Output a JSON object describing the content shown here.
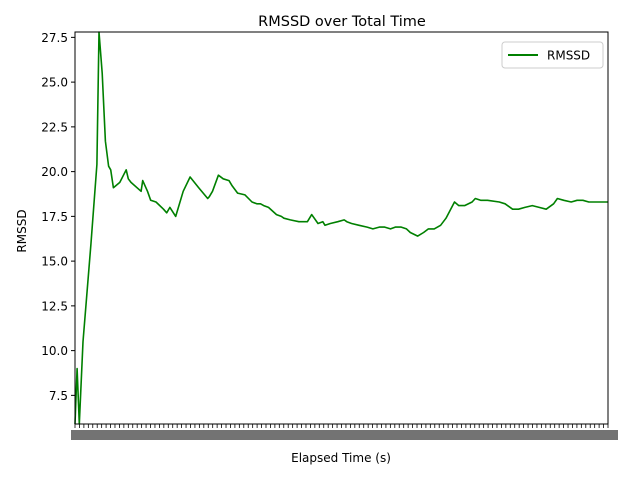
{
  "chart_data": {
    "type": "line",
    "title": "RMSSD over Total Time",
    "xlabel": "Elapsed Time (s)",
    "ylabel": "RMSSD",
    "ylim": [
      5.9,
      27.8
    ],
    "xlim": [
      0,
      100
    ],
    "yticks": [
      "7.5",
      "10.0",
      "12.5",
      "15.0",
      "17.5",
      "20.0",
      "22.5",
      "25.0",
      "27.5"
    ],
    "ytick_values": [
      7.5,
      10.0,
      12.5,
      15.0,
      17.5,
      20.0,
      22.5,
      25.0,
      27.5
    ],
    "xticks_note": "x tick labels are dense and overlapping (illegible)",
    "grid": false,
    "legend": "top-right",
    "series": [
      {
        "name": "RMSSD",
        "color": "#008000",
        "x": [
          0.0,
          0.4,
          0.8,
          1.5,
          3.0,
          4.1,
          4.5,
          5.1,
          5.7,
          6.3,
          6.7,
          7.2,
          8.4,
          9.6,
          10.0,
          10.5,
          12.4,
          12.7,
          13.6,
          14.2,
          15.2,
          16.6,
          17.2,
          17.8,
          18.9,
          20.3,
          21.6,
          23.2,
          24.9,
          25.2,
          25.8,
          26.9,
          27.8,
          28.9,
          29.5,
          30.5,
          31.9,
          33.2,
          34.1,
          34.8,
          35.4,
          36.3,
          37.8,
          38.7,
          39.2,
          40.4,
          42.0,
          43.6,
          44.4,
          45.6,
          46.5,
          46.9,
          47.9,
          49.3,
          50.5,
          51.0,
          51.9,
          53.3,
          54.8,
          55.9,
          57.1,
          58.1,
          59.2,
          60.1,
          61.2,
          62.2,
          62.9,
          64.3,
          65.4,
          66.3,
          67.4,
          68.6,
          69.6,
          71.2,
          72.0,
          73.1,
          74.5,
          75.1,
          76.1,
          77.4,
          79.6,
          80.7,
          82.1,
          83.2,
          84.4,
          85.8,
          87.1,
          88.4,
          89.8,
          90.5,
          91.7,
          93.1,
          94.2,
          95.3,
          96.4,
          97.9,
          98.8,
          100.0
        ],
        "y": [
          5.9,
          9.0,
          5.9,
          10.5,
          16.0,
          20.4,
          27.8,
          25.5,
          21.7,
          20.3,
          20.1,
          19.1,
          19.4,
          20.1,
          19.6,
          19.4,
          18.9,
          19.5,
          18.9,
          18.4,
          18.3,
          17.9,
          17.7,
          18.0,
          17.5,
          18.9,
          19.7,
          19.1,
          18.5,
          18.6,
          18.9,
          19.8,
          19.6,
          19.5,
          19.2,
          18.8,
          18.7,
          18.3,
          18.2,
          18.2,
          18.1,
          18.0,
          17.6,
          17.5,
          17.4,
          17.3,
          17.2,
          17.2,
          17.6,
          17.1,
          17.2,
          17.0,
          17.1,
          17.2,
          17.3,
          17.2,
          17.1,
          17.0,
          16.9,
          16.8,
          16.9,
          16.9,
          16.8,
          16.9,
          16.9,
          16.8,
          16.6,
          16.4,
          16.6,
          16.8,
          16.8,
          17.0,
          17.4,
          18.3,
          18.1,
          18.1,
          18.3,
          18.5,
          18.4,
          18.4,
          18.3,
          18.2,
          17.9,
          17.9,
          18.0,
          18.1,
          18.0,
          17.9,
          18.2,
          18.5,
          18.4,
          18.3,
          18.4,
          18.4,
          18.3,
          18.3,
          18.3,
          18.3
        ]
      }
    ]
  }
}
